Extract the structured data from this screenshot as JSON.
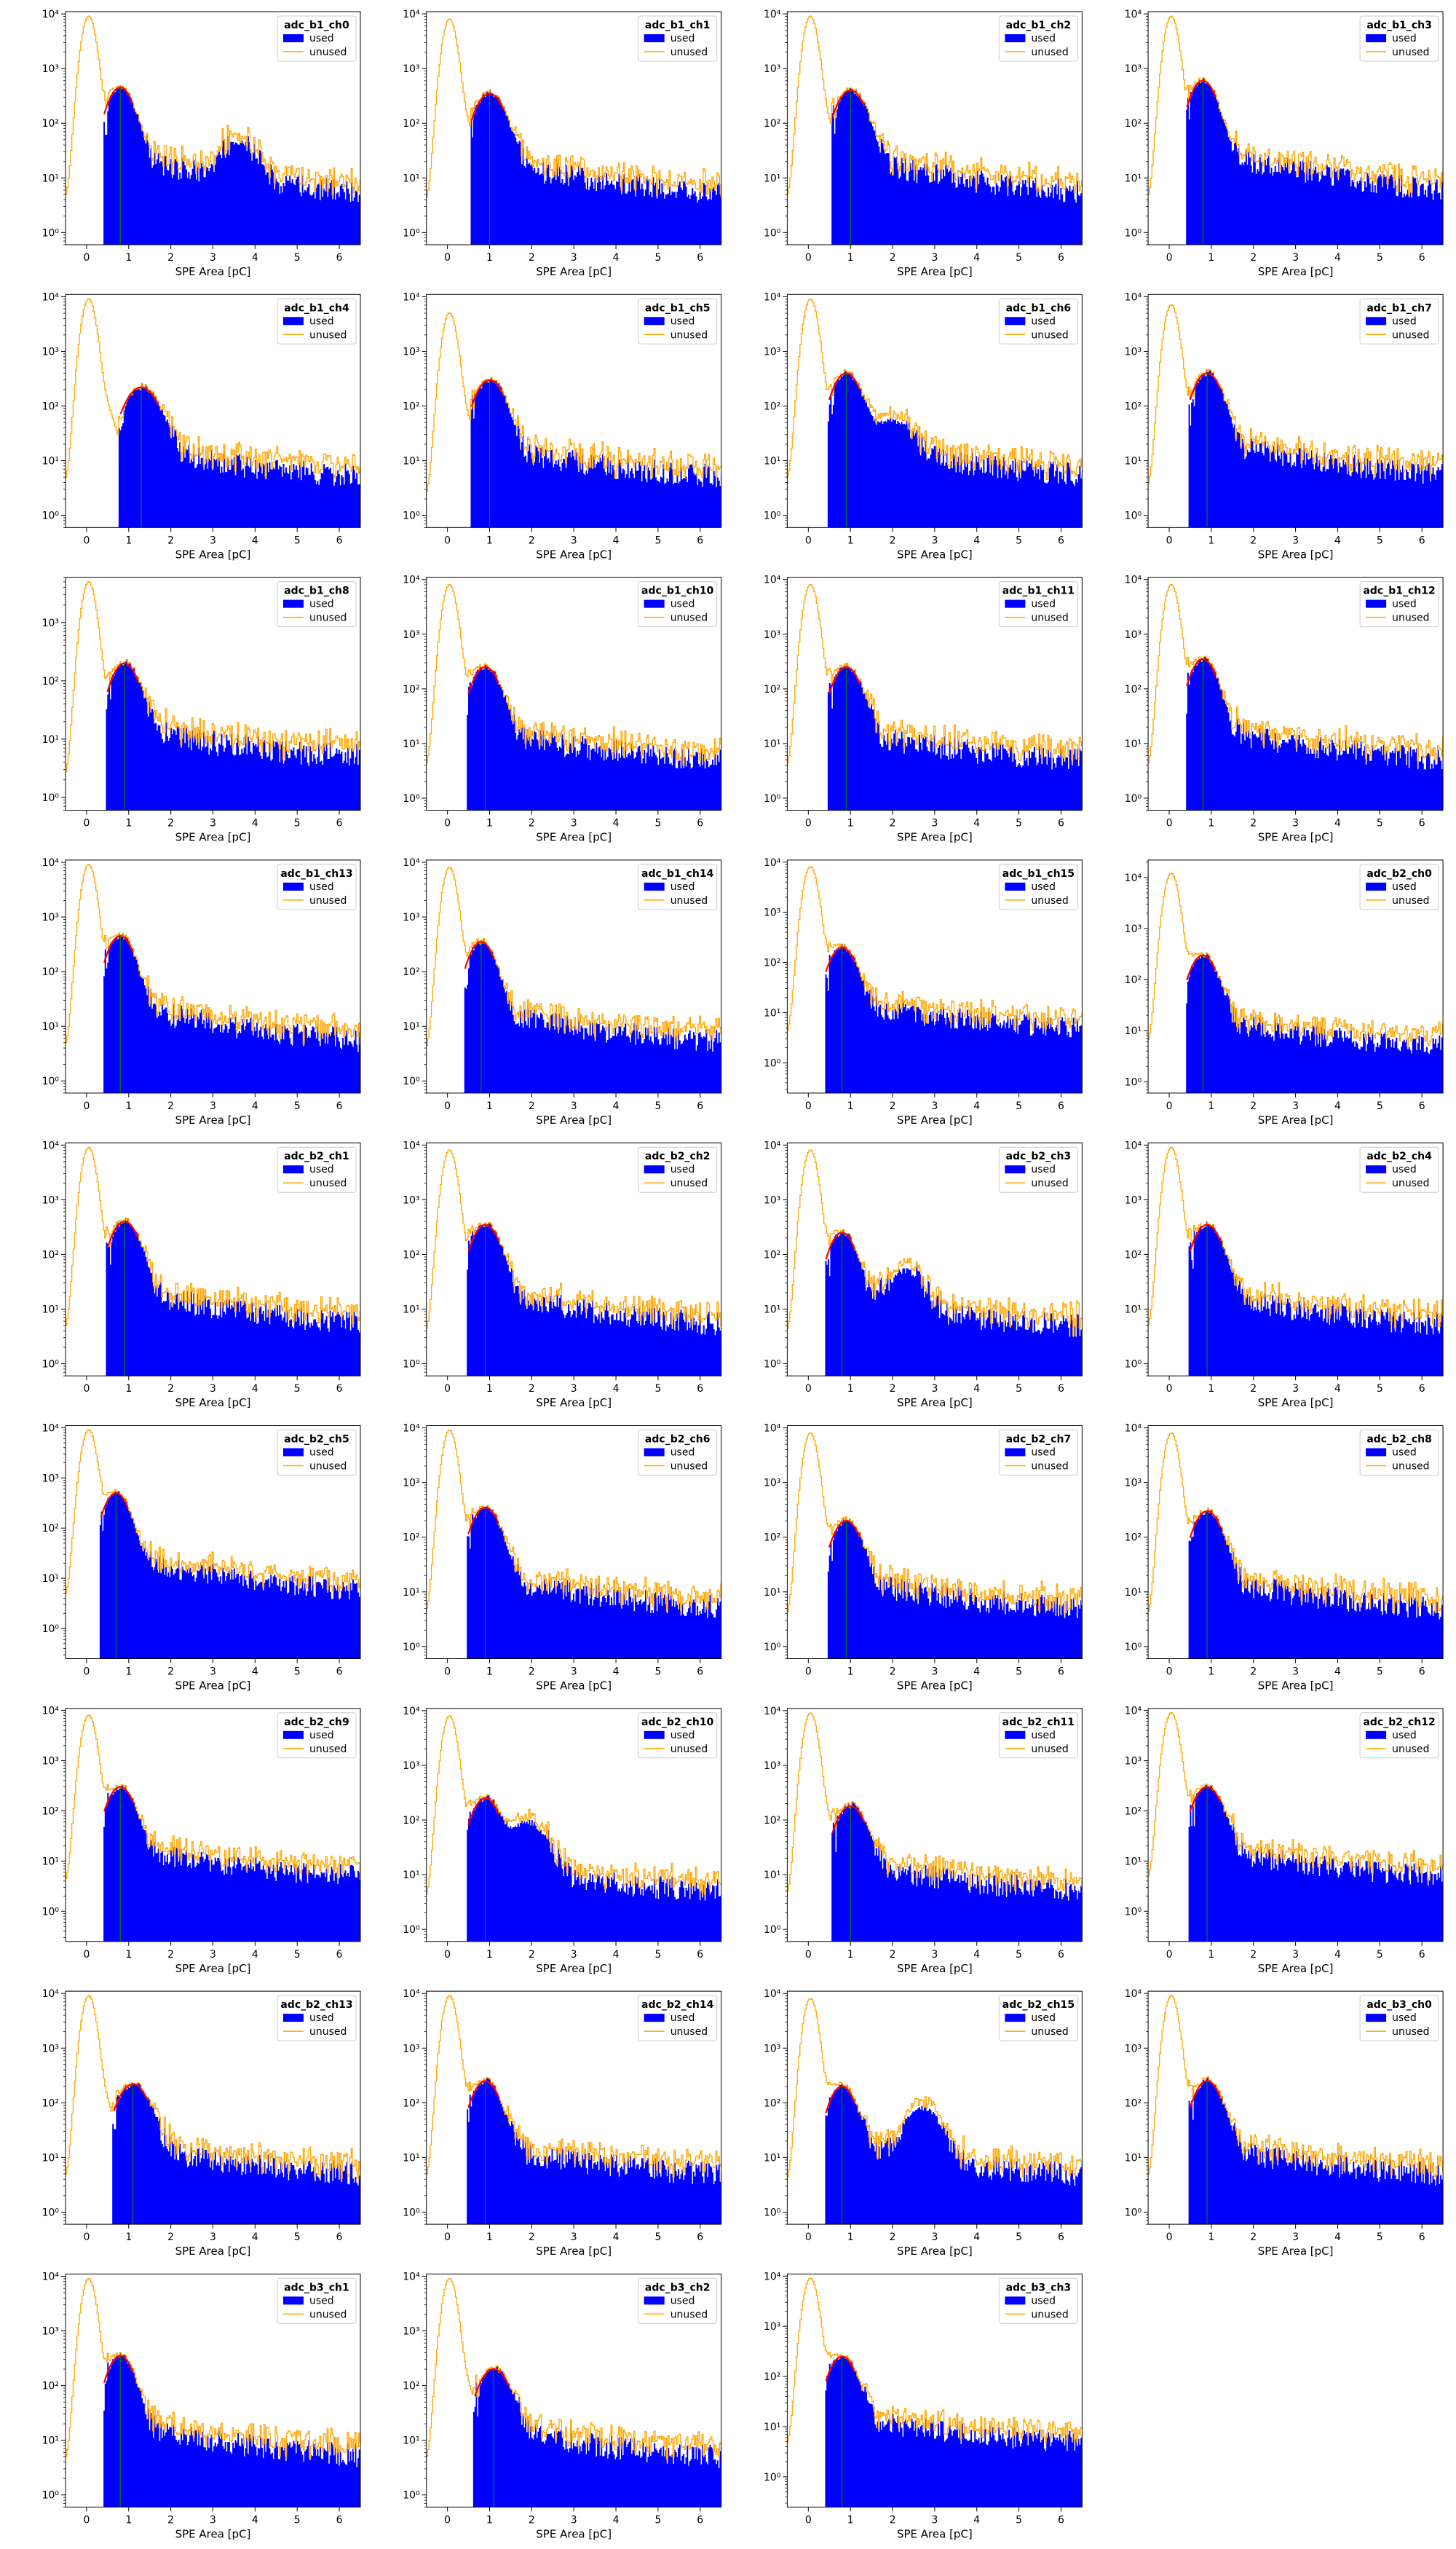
{
  "figure": {
    "xlabel": "SPE Area [pC]",
    "legend_used": "used",
    "legend_unused": "unused",
    "colors": {
      "used": "#0000ff",
      "unused": "#ffa500",
      "fit": "#ff0000",
      "mean": "#008000"
    }
  },
  "chart_data": [
    {
      "type": "bar",
      "title": "adc_b1_ch0",
      "xlim": [
        -0.5,
        6.5
      ],
      "xscale": "linear",
      "yscale": "log",
      "ylim": [
        0.6,
        11000
      ],
      "legend": "top-right",
      "peak_x": 0.8,
      "peak_height": 450,
      "unused_peak_height": 9000,
      "second_bump": {
        "x": 3.6,
        "height": 35
      }
    },
    {
      "type": "bar",
      "title": "adc_b1_ch1",
      "xlim": [
        -0.5,
        6.5
      ],
      "xscale": "linear",
      "yscale": "log",
      "ylim": [
        0.6,
        11000
      ],
      "legend": "top-right",
      "peak_x": 1.0,
      "peak_height": 350,
      "unused_peak_height": 8000
    },
    {
      "type": "bar",
      "title": "adc_b1_ch2",
      "xlim": [
        -0.5,
        6.5
      ],
      "xscale": "linear",
      "yscale": "log",
      "ylim": [
        0.6,
        11000
      ],
      "legend": "top-right",
      "peak_x": 1.0,
      "peak_height": 400,
      "unused_peak_height": 9000
    },
    {
      "type": "bar",
      "title": "adc_b1_ch3",
      "xlim": [
        -0.5,
        6.5
      ],
      "xscale": "linear",
      "yscale": "log",
      "ylim": [
        0.6,
        11000
      ],
      "legend": "top-right",
      "peak_x": 0.8,
      "peak_height": 600,
      "unused_peak_height": 9000
    },
    {
      "type": "bar",
      "title": "adc_b1_ch4",
      "xlim": [
        -0.5,
        6.5
      ],
      "xscale": "linear",
      "yscale": "log",
      "ylim": [
        0.6,
        11000
      ],
      "legend": "top-right",
      "peak_x": 1.3,
      "peak_height": 220,
      "unused_peak_height": 9000
    },
    {
      "type": "bar",
      "title": "adc_b1_ch5",
      "xlim": [
        -0.5,
        6.5
      ],
      "xscale": "linear",
      "yscale": "log",
      "ylim": [
        0.6,
        11000
      ],
      "legend": "top-right",
      "peak_x": 1.0,
      "peak_height": 300,
      "unused_peak_height": 5000
    },
    {
      "type": "bar",
      "title": "adc_b1_ch6",
      "xlim": [
        -0.5,
        6.5
      ],
      "xscale": "linear",
      "yscale": "log",
      "ylim": [
        0.6,
        11000
      ],
      "legend": "top-right",
      "peak_x": 0.9,
      "peak_height": 400,
      "unused_peak_height": 9000,
      "second_bump": {
        "x": 2.0,
        "height": 40
      }
    },
    {
      "type": "bar",
      "title": "adc_b1_ch7",
      "xlim": [
        -0.5,
        6.5
      ],
      "xscale": "linear",
      "yscale": "log",
      "ylim": [
        0.6,
        11000
      ],
      "legend": "top-right",
      "peak_x": 0.9,
      "peak_height": 400,
      "unused_peak_height": 7000
    },
    {
      "type": "bar",
      "title": "adc_b1_ch8",
      "xlim": [
        -0.5,
        6.5
      ],
      "xscale": "linear",
      "yscale": "log",
      "ylim": [
        0.6,
        6000
      ],
      "legend": "top-right",
      "peak_x": 0.9,
      "peak_height": 200,
      "unused_peak_height": 5000
    },
    {
      "type": "bar",
      "title": "adc_b1_ch10",
      "xlim": [
        -0.5,
        6.5
      ],
      "xscale": "linear",
      "yscale": "log",
      "ylim": [
        0.6,
        11000
      ],
      "legend": "top-right",
      "peak_x": 0.9,
      "peak_height": 250,
      "unused_peak_height": 8000
    },
    {
      "type": "bar",
      "title": "adc_b1_ch11",
      "xlim": [
        -0.5,
        6.5
      ],
      "xscale": "linear",
      "yscale": "log",
      "ylim": [
        0.6,
        11000
      ],
      "legend": "top-right",
      "peak_x": 0.9,
      "peak_height": 250,
      "unused_peak_height": 8000
    },
    {
      "type": "bar",
      "title": "adc_b1_ch12",
      "xlim": [
        -0.5,
        6.5
      ],
      "xscale": "linear",
      "yscale": "log",
      "ylim": [
        0.6,
        11000
      ],
      "legend": "top-right",
      "peak_x": 0.8,
      "peak_height": 350,
      "unused_peak_height": 8000
    },
    {
      "type": "bar",
      "title": "adc_b1_ch13",
      "xlim": [
        -0.5,
        6.5
      ],
      "xscale": "linear",
      "yscale": "log",
      "ylim": [
        0.6,
        11000
      ],
      "legend": "top-right",
      "peak_x": 0.8,
      "peak_height": 450,
      "unused_peak_height": 9000
    },
    {
      "type": "bar",
      "title": "adc_b1_ch14",
      "xlim": [
        -0.5,
        6.5
      ],
      "xscale": "linear",
      "yscale": "log",
      "ylim": [
        0.6,
        11000
      ],
      "legend": "top-right",
      "peak_x": 0.8,
      "peak_height": 350,
      "unused_peak_height": 8000
    },
    {
      "type": "bar",
      "title": "adc_b1_ch15",
      "xlim": [
        -0.5,
        6.5
      ],
      "xscale": "linear",
      "yscale": "log",
      "ylim": [
        0.25,
        11000
      ],
      "legend": "top-right",
      "peak_x": 0.8,
      "peak_height": 200,
      "unused_peak_height": 8000
    },
    {
      "type": "bar",
      "title": "adc_b2_ch0",
      "xlim": [
        -0.5,
        6.5
      ],
      "xscale": "linear",
      "yscale": "log",
      "ylim": [
        0.6,
        22000
      ],
      "legend": "top-right",
      "peak_x": 0.8,
      "peak_height": 300,
      "unused_peak_height": 12000
    },
    {
      "type": "bar",
      "title": "adc_b2_ch1",
      "xlim": [
        -0.5,
        6.5
      ],
      "xscale": "linear",
      "yscale": "log",
      "ylim": [
        0.6,
        11000
      ],
      "legend": "top-right",
      "peak_x": 0.9,
      "peak_height": 400,
      "unused_peak_height": 9000
    },
    {
      "type": "bar",
      "title": "adc_b2_ch2",
      "xlim": [
        -0.5,
        6.5
      ],
      "xscale": "linear",
      "yscale": "log",
      "ylim": [
        0.6,
        11000
      ],
      "legend": "top-right",
      "peak_x": 0.9,
      "peak_height": 350,
      "unused_peak_height": 8000
    },
    {
      "type": "bar",
      "title": "adc_b2_ch3",
      "xlim": [
        -0.5,
        6.5
      ],
      "xscale": "linear",
      "yscale": "log",
      "ylim": [
        0.6,
        11000
      ],
      "legend": "top-right",
      "peak_x": 0.8,
      "peak_height": 250,
      "unused_peak_height": 8000,
      "second_bump": {
        "x": 2.3,
        "height": 40
      }
    },
    {
      "type": "bar",
      "title": "adc_b2_ch4",
      "xlim": [
        -0.5,
        6.5
      ],
      "xscale": "linear",
      "yscale": "log",
      "ylim": [
        0.6,
        11000
      ],
      "legend": "top-right",
      "peak_x": 0.9,
      "peak_height": 350,
      "unused_peak_height": 9000
    },
    {
      "type": "bar",
      "title": "adc_b2_ch5",
      "xlim": [
        -0.5,
        6.5
      ],
      "xscale": "linear",
      "yscale": "log",
      "ylim": [
        0.25,
        11000
      ],
      "legend": "top-right",
      "peak_x": 0.7,
      "peak_height": 500,
      "unused_peak_height": 9000
    },
    {
      "type": "bar",
      "title": "adc_b2_ch6",
      "xlim": [
        -0.5,
        6.5
      ],
      "xscale": "linear",
      "yscale": "log",
      "ylim": [
        0.6,
        11000
      ],
      "legend": "top-right",
      "peak_x": 0.9,
      "peak_height": 350,
      "unused_peak_height": 9000
    },
    {
      "type": "bar",
      "title": "adc_b2_ch7",
      "xlim": [
        -0.5,
        6.5
      ],
      "xscale": "linear",
      "yscale": "log",
      "ylim": [
        0.6,
        11000
      ],
      "legend": "top-right",
      "peak_x": 0.9,
      "peak_height": 200,
      "unused_peak_height": 8000
    },
    {
      "type": "bar",
      "title": "adc_b2_ch8",
      "xlim": [
        -0.5,
        6.5
      ],
      "xscale": "linear",
      "yscale": "log",
      "ylim": [
        0.6,
        11000
      ],
      "legend": "top-right",
      "peak_x": 0.9,
      "peak_height": 300,
      "unused_peak_height": 8000
    },
    {
      "type": "bar",
      "title": "adc_b2_ch9",
      "xlim": [
        -0.5,
        6.5
      ],
      "xscale": "linear",
      "yscale": "log",
      "ylim": [
        0.25,
        11000
      ],
      "legend": "top-right",
      "peak_x": 0.8,
      "peak_height": 300,
      "unused_peak_height": 8000
    },
    {
      "type": "bar",
      "title": "adc_b2_ch10",
      "xlim": [
        -0.5,
        6.5
      ],
      "xscale": "linear",
      "yscale": "log",
      "ylim": [
        0.6,
        11000
      ],
      "legend": "top-right",
      "peak_x": 0.9,
      "peak_height": 250,
      "unused_peak_height": 8000,
      "second_bump": {
        "x": 1.9,
        "height": 80
      }
    },
    {
      "type": "bar",
      "title": "adc_b2_ch11",
      "xlim": [
        -0.5,
        6.5
      ],
      "xscale": "linear",
      "yscale": "log",
      "ylim": [
        0.6,
        11000
      ],
      "legend": "top-right",
      "peak_x": 1.0,
      "peak_height": 180,
      "unused_peak_height": 9000
    },
    {
      "type": "bar",
      "title": "adc_b2_ch12",
      "xlim": [
        -0.5,
        6.5
      ],
      "xscale": "linear",
      "yscale": "log",
      "ylim": [
        0.25,
        11000
      ],
      "legend": "top-right",
      "peak_x": 0.9,
      "peak_height": 300,
      "unused_peak_height": 9000
    },
    {
      "type": "bar",
      "title": "adc_b2_ch13",
      "xlim": [
        -0.5,
        6.5
      ],
      "xscale": "linear",
      "yscale": "log",
      "ylim": [
        0.6,
        11000
      ],
      "legend": "top-right",
      "peak_x": 1.1,
      "peak_height": 220,
      "unused_peak_height": 9000
    },
    {
      "type": "bar",
      "title": "adc_b2_ch14",
      "xlim": [
        -0.5,
        6.5
      ],
      "xscale": "linear",
      "yscale": "log",
      "ylim": [
        0.6,
        11000
      ],
      "legend": "top-right",
      "peak_x": 0.9,
      "peak_height": 250,
      "unused_peak_height": 9000
    },
    {
      "type": "bar",
      "title": "adc_b2_ch15",
      "xlim": [
        -0.5,
        6.5
      ],
      "xscale": "linear",
      "yscale": "log",
      "ylim": [
        0.6,
        11000
      ],
      "legend": "top-right",
      "peak_x": 0.8,
      "peak_height": 200,
      "unused_peak_height": 8000,
      "second_bump": {
        "x": 2.7,
        "height": 70
      }
    },
    {
      "type": "bar",
      "title": "adc_b3_ch0",
      "xlim": [
        -0.5,
        6.5
      ],
      "xscale": "linear",
      "yscale": "log",
      "ylim": [
        0.6,
        11000
      ],
      "legend": "top-right",
      "peak_x": 0.9,
      "peak_height": 250,
      "unused_peak_height": 9000
    },
    {
      "type": "bar",
      "title": "adc_b3_ch1",
      "xlim": [
        -0.5,
        6.5
      ],
      "xscale": "linear",
      "yscale": "log",
      "ylim": [
        0.6,
        11000
      ],
      "legend": "top-right",
      "peak_x": 0.8,
      "peak_height": 350,
      "unused_peak_height": 9000
    },
    {
      "type": "bar",
      "title": "adc_b3_ch2",
      "xlim": [
        -0.5,
        6.5
      ],
      "xscale": "linear",
      "yscale": "log",
      "ylim": [
        0.6,
        11000
      ],
      "legend": "top-right",
      "peak_x": 1.1,
      "peak_height": 200,
      "unused_peak_height": 9000
    },
    {
      "type": "bar",
      "title": "adc_b3_ch3",
      "xlim": [
        -0.5,
        6.5
      ],
      "xscale": "linear",
      "yscale": "log",
      "ylim": [
        0.25,
        11000
      ],
      "legend": "top-right",
      "peak_x": 0.8,
      "peak_height": 250,
      "unused_peak_height": 9000
    }
  ]
}
